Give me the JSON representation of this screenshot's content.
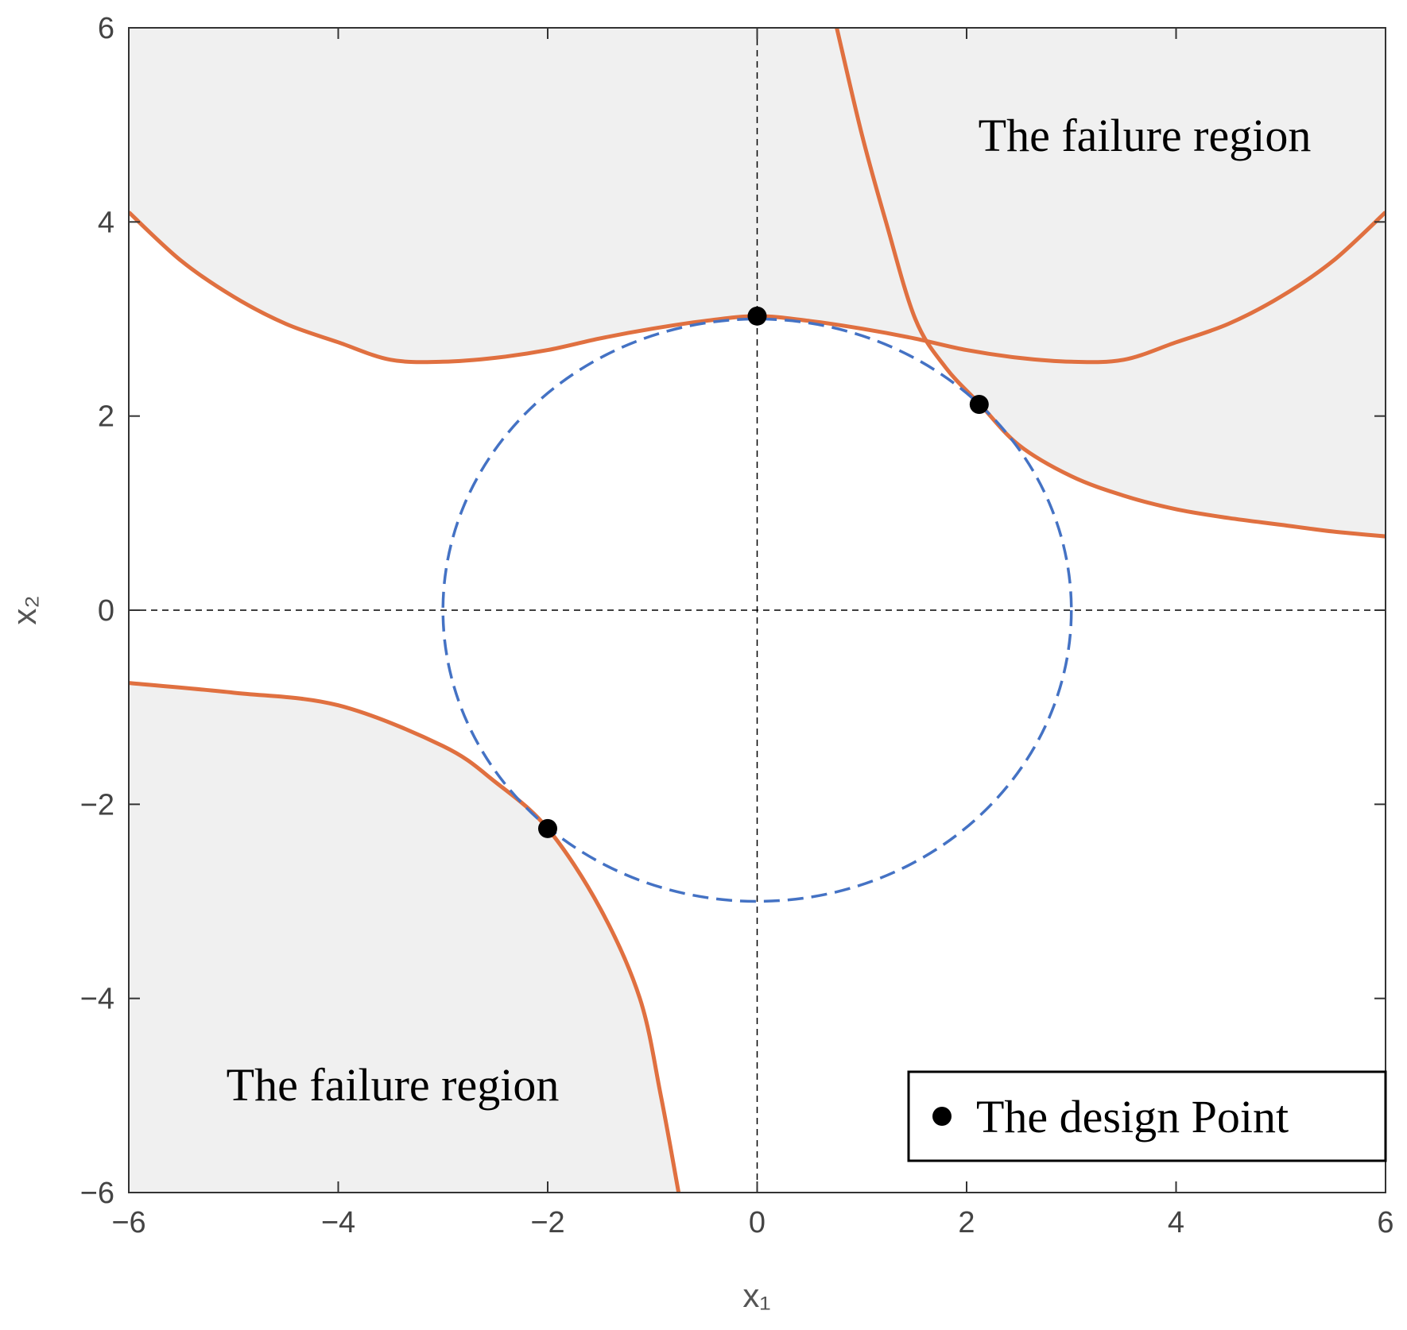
{
  "chart_data": {
    "type": "line",
    "xlabel": "x₁",
    "ylabel": "x₂",
    "xlim": [
      -6,
      6
    ],
    "ylim": [
      -6,
      6
    ],
    "xticks": [
      {
        "value": -6,
        "label": "−6"
      },
      {
        "value": -4,
        "label": "−4"
      },
      {
        "value": -2,
        "label": "−2"
      },
      0,
      2,
      4,
      6
    ],
    "yticks": [
      {
        "value": -6,
        "label": "−6"
      },
      {
        "value": -4,
        "label": "−4"
      },
      {
        "value": -2,
        "label": "−2"
      },
      0,
      2,
      4,
      6
    ],
    "region_color": "#f0f0f0",
    "annotations": [
      "The failure region",
      "The failure region"
    ],
    "reference_lines": {
      "x": 0,
      "y": 0
    },
    "series": [
      {
        "color": "#e07040",
        "fill": "above",
        "x": [
          -6,
          -5.5,
          -5,
          -4.5,
          -4,
          -3.5,
          -3,
          -2.5,
          -2,
          -1.5,
          -1,
          -0.5,
          0,
          0.5,
          1,
          1.5,
          2,
          2.5,
          3,
          3.5,
          4,
          4.5,
          5,
          5.5,
          6
        ],
        "y": [
          4.1,
          3.6,
          3.23,
          2.95,
          2.76,
          2.58,
          2.56,
          2.6,
          2.68,
          2.8,
          2.9,
          2.98,
          3.03,
          2.98,
          2.9,
          2.8,
          2.68,
          2.6,
          2.56,
          2.58,
          2.76,
          2.95,
          3.23,
          3.6,
          4.1
        ]
      },
      {
        "color": "#e07040",
        "fill": "above",
        "x": [
          0.76,
          1.0,
          1.23,
          1.51,
          1.8,
          2.12,
          2.5,
          3,
          3.5,
          4,
          4.5,
          5,
          5.5,
          6
        ],
        "y": [
          6,
          4.9,
          4,
          3,
          2.5,
          2.13,
          1.7,
          1.38,
          1.18,
          1.04,
          0.95,
          0.88,
          0.81,
          0.76
        ]
      },
      {
        "color": "#e07040",
        "fill": "below",
        "x": [
          -6,
          -5,
          -4,
          -3,
          -2.5,
          -2,
          -1.5,
          -1.12,
          -0.92,
          -0.75
        ],
        "y": [
          -0.75,
          -0.85,
          -0.98,
          -1.4,
          -1.77,
          -2.25,
          -3.07,
          -4,
          -5,
          -6
        ]
      }
    ],
    "circle": {
      "color": "#4472c4",
      "center": [
        0,
        0
      ],
      "radius": 3
    },
    "points": {
      "name": "The design Point",
      "color": "#000000",
      "x": [
        0,
        2.12,
        -2
      ],
      "y": [
        3.03,
        2.12,
        -2.25
      ]
    },
    "legend": "lower right"
  }
}
